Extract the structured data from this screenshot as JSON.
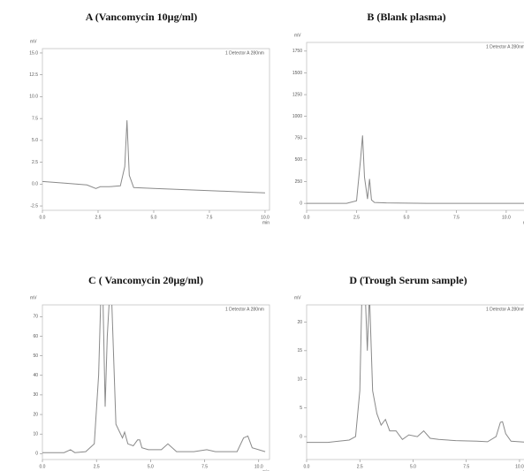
{
  "chart_data": [
    {
      "type": "line",
      "title": "A (Vancomycin  10µg/ml)",
      "ylabel": "mV",
      "xlabel": "min",
      "note": "1 Detector A 280nm",
      "color": "#8a8a8a",
      "x": [
        0,
        1,
        2,
        2.4,
        2.6,
        3,
        3.5,
        3.7,
        3.8,
        3.9,
        4.1,
        5,
        6,
        7,
        8,
        9,
        10
      ],
      "values": [
        0.3,
        0.1,
        -0.1,
        -0.5,
        -0.3,
        -0.3,
        -0.2,
        2,
        7.3,
        1,
        -0.4,
        -0.5,
        -0.6,
        -0.7,
        -0.8,
        -0.9,
        -1.0
      ],
      "xlim": [
        0,
        10.2
      ],
      "ylim": [
        -3,
        15.5
      ],
      "xticks": [
        {
          "value": 0,
          "label": "0.0"
        },
        2.5,
        {
          "value": 5,
          "label": "5.0"
        },
        7.5,
        {
          "value": 10,
          "label": "10.0"
        }
      ],
      "yticks": [
        -2.5,
        {
          "value": 0,
          "label": "0.0"
        },
        2.5,
        {
          "value": 5,
          "label": "5.0"
        },
        7.5,
        {
          "value": 10,
          "label": "10.0"
        },
        12.5,
        {
          "value": 15,
          "label": "15.0"
        }
      ]
    },
    {
      "type": "line",
      "title": "B (Blank plasma)",
      "ylabel": "mV",
      "xlabel": "min",
      "note": "1 Detector A 280nm",
      "color": "#8a8a8a",
      "x": [
        0,
        1,
        2,
        2.5,
        2.7,
        2.8,
        2.9,
        3.05,
        3.15,
        3.25,
        3.4,
        4,
        6,
        8,
        10,
        11.2
      ],
      "values": [
        0,
        0,
        0,
        30,
        500,
        780,
        300,
        50,
        280,
        40,
        10,
        5,
        0,
        0,
        0,
        0
      ],
      "xlim": [
        0,
        11.2
      ],
      "ylim": [
        -80,
        1850
      ],
      "xticks": [
        {
          "value": 0,
          "label": "0.0"
        },
        2.5,
        {
          "value": 5,
          "label": "5.0"
        },
        7.5,
        {
          "value": 10,
          "label": "10.0"
        }
      ],
      "yticks": [
        0,
        250,
        500,
        750,
        1000,
        1250,
        1500,
        1750
      ]
    },
    {
      "type": "line",
      "title": "C ( Vancomycin  20µg/ml)",
      "ylabel": "mV",
      "xlabel": "min",
      "note": "1 Detector A 280nm",
      "color": "#8a8a8a",
      "x": [
        0,
        1,
        1.3,
        1.5,
        2,
        2.4,
        2.6,
        2.7,
        2.8,
        2.9,
        3.0,
        3.1,
        3.2,
        3.4,
        3.7,
        3.8,
        3.95,
        4.2,
        4.4,
        4.5,
        4.6,
        4.9,
        5.5,
        5.8,
        6.2,
        7,
        7.6,
        8,
        8.5,
        9,
        9.3,
        9.5,
        9.7,
        10.3
      ],
      "values": [
        0.5,
        0.5,
        2,
        0.5,
        1,
        5,
        40,
        80,
        80,
        24,
        60,
        80,
        80,
        15,
        8,
        11,
        5,
        4,
        7,
        7,
        3,
        2,
        2,
        5,
        1,
        1,
        2,
        1,
        1,
        1,
        8,
        9,
        3,
        1
      ],
      "xlim": [
        0,
        10.5
      ],
      "ylim": [
        -3,
        76
      ],
      "xticks": [
        {
          "value": 0,
          "label": "0.0"
        },
        2.5,
        {
          "value": 5,
          "label": "5.0"
        },
        7.5,
        {
          "value": 10,
          "label": "10.0"
        }
      ],
      "yticks": [
        0,
        10,
        20,
        30,
        40,
        50,
        60,
        70
      ]
    },
    {
      "type": "line",
      "title": "D (Trough  Serum sample)",
      "ylabel": "mV",
      "xlabel": "min",
      "note": "1 Detector A 280nm",
      "color": "#8a8a8a",
      "x": [
        0,
        1,
        2,
        2.3,
        2.5,
        2.6,
        2.75,
        2.85,
        2.95,
        3.1,
        3.3,
        3.5,
        3.7,
        3.9,
        4.2,
        4.5,
        4.8,
        5.2,
        5.5,
        5.8,
        6.2,
        7,
        8,
        8.5,
        8.9,
        9.1,
        9.2,
        9.35,
        9.6,
        10.4
      ],
      "values": [
        -1,
        -1,
        -0.6,
        0,
        8,
        25,
        25,
        15,
        25,
        8,
        4,
        2,
        3,
        1,
        1,
        -0.5,
        0.3,
        0,
        1,
        -0.3,
        -0.5,
        -0.7,
        -0.8,
        -0.9,
        0,
        2.5,
        2.6,
        0.5,
        -0.8,
        -1
      ],
      "xlim": [
        0,
        10.5
      ],
      "ylim": [
        -4,
        23
      ],
      "xticks": [
        {
          "value": 0,
          "label": "0.0"
        },
        2.5,
        {
          "value": 5,
          "label": "5.0"
        },
        7.5,
        {
          "value": 10,
          "label": "10.0"
        }
      ],
      "yticks": [
        0,
        5,
        10,
        15,
        20
      ]
    }
  ]
}
